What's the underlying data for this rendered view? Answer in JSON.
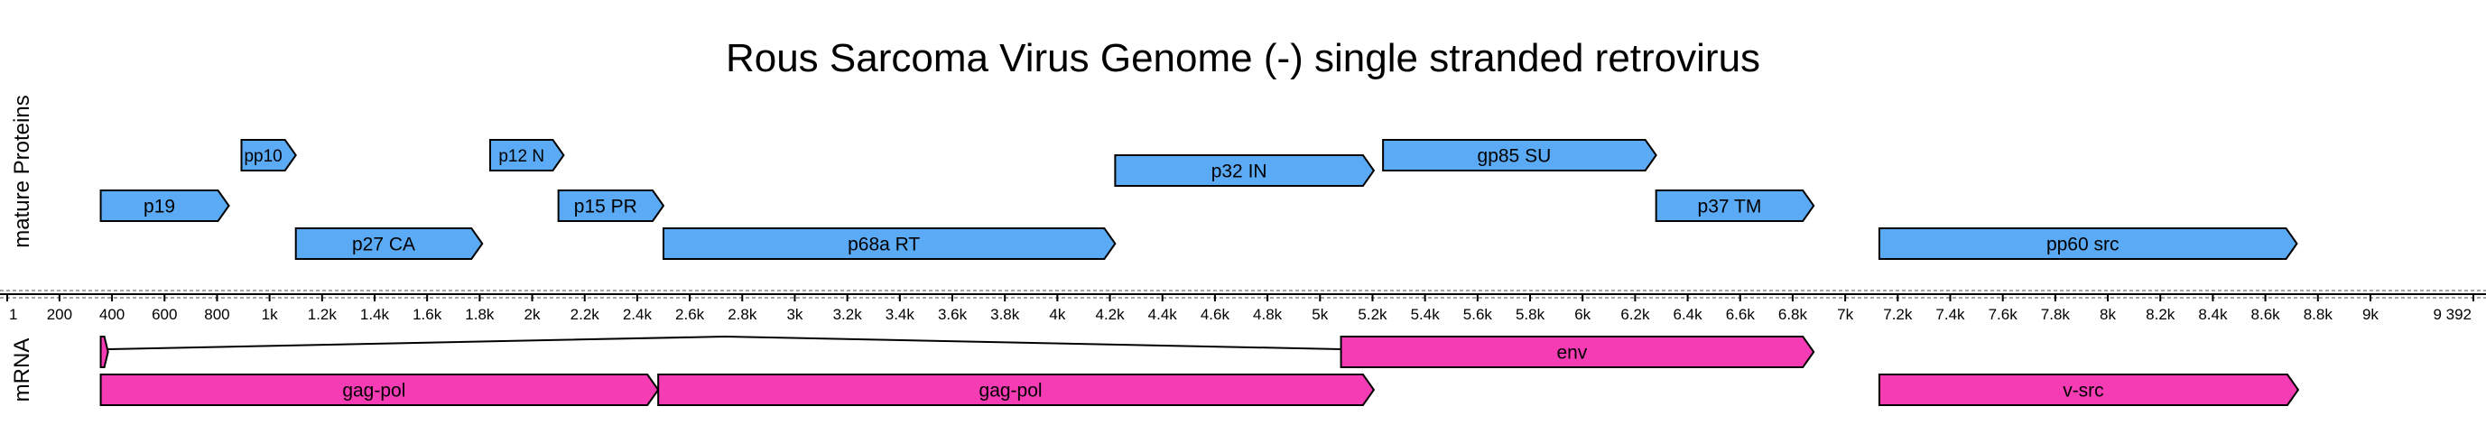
{
  "title": "Rous Sarcoma Virus Genome (-) single stranded retrovirus",
  "colors": {
    "protein": "#5aaaf5",
    "mrna": "#f53cb4",
    "stroke": "#000000",
    "axis": "#000000",
    "text": "#000000",
    "dashed": "#888888"
  },
  "tracks": [
    {
      "label": "mature Proteins"
    },
    {
      "label": "mRNA"
    }
  ],
  "axis": {
    "start": 1,
    "end": 9392,
    "start_label": "1",
    "end_label": "9 392",
    "ticks": [
      {
        "value": 200,
        "label": "200"
      },
      {
        "value": 400,
        "label": "400"
      },
      {
        "value": 600,
        "label": "600"
      },
      {
        "value": 800,
        "label": "800"
      },
      {
        "value": 1000,
        "label": "1k"
      },
      {
        "value": 1200,
        "label": "1.2k"
      },
      {
        "value": 1400,
        "label": "1.4k"
      },
      {
        "value": 1600,
        "label": "1.6k"
      },
      {
        "value": 1800,
        "label": "1.8k"
      },
      {
        "value": 2000,
        "label": "2k"
      },
      {
        "value": 2200,
        "label": "2.2k"
      },
      {
        "value": 2400,
        "label": "2.4k"
      },
      {
        "value": 2600,
        "label": "2.6k"
      },
      {
        "value": 2800,
        "label": "2.8k"
      },
      {
        "value": 3000,
        "label": "3k"
      },
      {
        "value": 3200,
        "label": "3.2k"
      },
      {
        "value": 3400,
        "label": "3.4k"
      },
      {
        "value": 3600,
        "label": "3.6k"
      },
      {
        "value": 3800,
        "label": "3.8k"
      },
      {
        "value": 4000,
        "label": "4k"
      },
      {
        "value": 4200,
        "label": "4.2k"
      },
      {
        "value": 4400,
        "label": "4.4k"
      },
      {
        "value": 4600,
        "label": "4.6k"
      },
      {
        "value": 4800,
        "label": "4.8k"
      },
      {
        "value": 5000,
        "label": "5k"
      },
      {
        "value": 5200,
        "label": "5.2k"
      },
      {
        "value": 5400,
        "label": "5.4k"
      },
      {
        "value": 5600,
        "label": "5.6k"
      },
      {
        "value": 5800,
        "label": "5.8k"
      },
      {
        "value": 6000,
        "label": "6k"
      },
      {
        "value": 6200,
        "label": "6.2k"
      },
      {
        "value": 6400,
        "label": "6.4k"
      },
      {
        "value": 6600,
        "label": "6.6k"
      },
      {
        "value": 6800,
        "label": "6.8k"
      },
      {
        "value": 7000,
        "label": "7k"
      },
      {
        "value": 7200,
        "label": "7.2k"
      },
      {
        "value": 7400,
        "label": "7.4k"
      },
      {
        "value": 7600,
        "label": "7.6k"
      },
      {
        "value": 7800,
        "label": "7.8k"
      },
      {
        "value": 8000,
        "label": "8k"
      },
      {
        "value": 8200,
        "label": "8.2k"
      },
      {
        "value": 8400,
        "label": "8.4k"
      },
      {
        "value": 8600,
        "label": "8.6k"
      },
      {
        "value": 8800,
        "label": "8.8k"
      },
      {
        "value": 9000,
        "label": "9k"
      }
    ]
  },
  "proteins": [
    {
      "name": "p19",
      "start": 357,
      "end": 845,
      "row": 2
    },
    {
      "name": "pp10",
      "start": 893,
      "end": 1100,
      "row": 0
    },
    {
      "name": "p27 CA",
      "start": 1100,
      "end": 1810,
      "row": 3
    },
    {
      "name": "p12 N",
      "start": 1840,
      "end": 2120,
      "row": 0
    },
    {
      "name": "p15 PR",
      "start": 2100,
      "end": 2500,
      "row": 2
    },
    {
      "name": "p68a RT",
      "start": 2500,
      "end": 4220,
      "row": 3
    },
    {
      "name": "p32 IN",
      "start": 4220,
      "end": 5205,
      "row": 1
    },
    {
      "name": "gp85 SU",
      "start": 5240,
      "end": 6280,
      "row": 0
    },
    {
      "name": "p37 TM",
      "start": 6280,
      "end": 6880,
      "row": 2
    },
    {
      "name": "pp60 src",
      "start": 7130,
      "end": 8720,
      "row": 3
    }
  ],
  "mrna": [
    {
      "name": "",
      "start": 357,
      "end": 385,
      "row": 0
    },
    {
      "name": "env",
      "start": 5080,
      "end": 6880,
      "row": 0
    },
    {
      "name": "gag-pol",
      "start": 357,
      "end": 2480,
      "row": 1
    },
    {
      "name": "gag-pol",
      "start": 2480,
      "end": 5205,
      "row": 1
    },
    {
      "name": "v-src",
      "start": 7130,
      "end": 8725,
      "row": 1
    }
  ],
  "splice_junctions": [
    {
      "from": 385,
      "to": 5080,
      "row": 0
    }
  ]
}
